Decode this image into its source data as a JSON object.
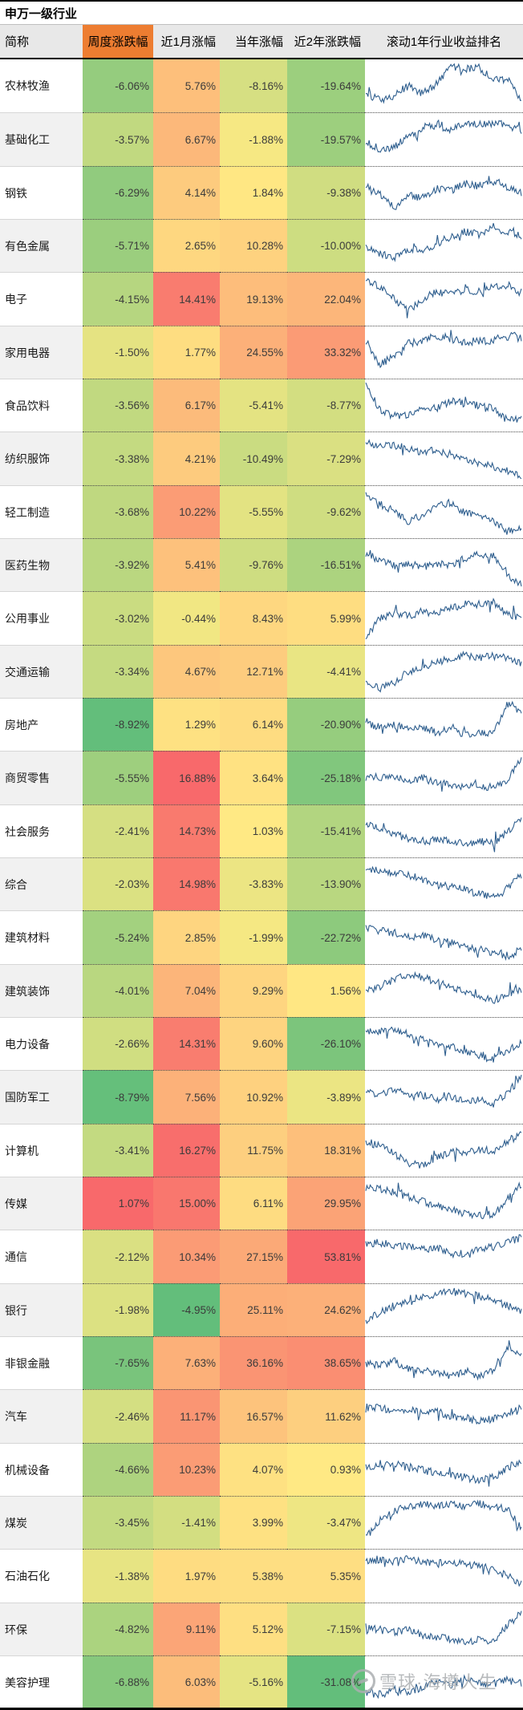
{
  "title": "申万一级行业",
  "header": {
    "name": "简称",
    "weekly": "周度涨跌幅",
    "month1": "近1月涨幅",
    "ytd": "当年涨幅",
    "year2": "近2年涨跌幅",
    "spark": "滚动1年行业收益排名"
  },
  "watermark": {
    "text": "雪球·海樽人生",
    "logo": "xueqiu-circle-logo"
  },
  "colors": {
    "header_accent": "#ED7D31",
    "header_bg": "#E8E8E8",
    "scale_green": "#63BE7B",
    "scale_yellow": "#FFEB84",
    "scale_red": "#F8696B",
    "spark_line": "#2E5E8E",
    "row_alt_bg": "#F1F1F1",
    "top_border": "#000000"
  },
  "scales": {
    "weekly": {
      "min": -8.92,
      "mid": 0,
      "max": 1.07
    },
    "month1": {
      "min": -4.95,
      "mid": 0,
      "max": 16.88
    },
    "ytd": {
      "min": -31.08,
      "mid": 0,
      "max": 53.81
    },
    "year2": {
      "min": -31.08,
      "mid": 0,
      "max": 53.81
    }
  },
  "chart_data": {
    "type": "heatmap",
    "title": "申万一级行业",
    "value_format": "percent_2dp",
    "columns": [
      "简称",
      "周度涨跌幅",
      "近1月涨幅",
      "当年涨幅",
      "近2年涨跌幅",
      "滚动1年行业收益排名"
    ],
    "legend_position": "none",
    "rows": [
      {
        "name": "农林牧渔",
        "weekly": -6.06,
        "month1": 5.76,
        "ytd": -8.16,
        "year2": -19.64,
        "spark": [
          0.35,
          0.2,
          0.3,
          0.5,
          0.35,
          0.55,
          0.9,
          0.85,
          0.9,
          0.6,
          0.65,
          0.2
        ]
      },
      {
        "name": "基础化工",
        "weekly": -3.57,
        "month1": 6.67,
        "ytd": -1.88,
        "year2": -19.57,
        "spark": [
          0.45,
          0.3,
          0.35,
          0.55,
          0.75,
          0.8,
          0.7,
          0.85,
          0.8,
          0.85,
          0.8,
          0.7
        ]
      },
      {
        "name": "钢铁",
        "weekly": -6.29,
        "month1": 4.14,
        "ytd": 1.84,
        "year2": -9.38,
        "spark": [
          0.6,
          0.5,
          0.2,
          0.45,
          0.4,
          0.6,
          0.55,
          0.7,
          0.65,
          0.75,
          0.6,
          0.5
        ]
      },
      {
        "name": "有色金属",
        "weekly": -5.71,
        "month1": 2.65,
        "ytd": 10.28,
        "year2": -10.0,
        "spark": [
          0.5,
          0.35,
          0.25,
          0.45,
          0.4,
          0.55,
          0.7,
          0.8,
          0.75,
          0.85,
          0.8,
          0.7
        ]
      },
      {
        "name": "电子",
        "weekly": -4.15,
        "month1": 14.41,
        "ytd": 19.13,
        "year2": 22.04,
        "spark": [
          0.9,
          0.75,
          0.5,
          0.25,
          0.5,
          0.65,
          0.6,
          0.7,
          0.65,
          0.75,
          0.8,
          0.65
        ]
      },
      {
        "name": "家用电器",
        "weekly": -1.5,
        "month1": 1.77,
        "ytd": 24.55,
        "year2": 33.32,
        "spark": [
          0.75,
          0.25,
          0.45,
          0.7,
          0.75,
          0.85,
          0.8,
          0.7,
          0.75,
          0.75,
          0.9,
          0.8
        ]
      },
      {
        "name": "食品饮料",
        "weekly": -3.56,
        "month1": 6.17,
        "ytd": -5.41,
        "year2": -8.77,
        "spark": [
          0.95,
          0.4,
          0.3,
          0.3,
          0.5,
          0.45,
          0.6,
          0.55,
          0.5,
          0.45,
          0.2,
          0.25
        ]
      },
      {
        "name": "纺织服饰",
        "weekly": -3.38,
        "month1": 4.21,
        "ytd": -10.49,
        "year2": -7.29,
        "spark": [
          0.85,
          0.75,
          0.8,
          0.7,
          0.65,
          0.7,
          0.55,
          0.5,
          0.4,
          0.35,
          0.25,
          0.1
        ]
      },
      {
        "name": "轻工制造",
        "weekly": -3.68,
        "month1": 10.22,
        "ytd": -5.55,
        "year2": -9.62,
        "spark": [
          0.9,
          0.7,
          0.55,
          0.3,
          0.45,
          0.65,
          0.7,
          0.5,
          0.4,
          0.35,
          0.1,
          0.2
        ]
      },
      {
        "name": "医药生物",
        "weekly": -3.92,
        "month1": 5.41,
        "ytd": -9.76,
        "year2": -16.51,
        "spark": [
          0.75,
          0.6,
          0.5,
          0.55,
          0.45,
          0.55,
          0.5,
          0.65,
          0.75,
          0.7,
          0.3,
          0.1
        ]
      },
      {
        "name": "公用事业",
        "weekly": -3.02,
        "month1": -0.44,
        "ytd": 8.43,
        "year2": 5.99,
        "spark": [
          0.1,
          0.5,
          0.6,
          0.55,
          0.65,
          0.6,
          0.7,
          0.8,
          0.8,
          0.85,
          0.6,
          0.5
        ]
      },
      {
        "name": "交通运输",
        "weekly": -3.34,
        "month1": 4.67,
        "ytd": 12.71,
        "year2": -4.41,
        "spark": [
          0.3,
          0.15,
          0.3,
          0.5,
          0.6,
          0.7,
          0.8,
          0.85,
          0.8,
          0.85,
          0.8,
          0.7
        ]
      },
      {
        "name": "房地产",
        "weekly": -8.92,
        "month1": 1.29,
        "ytd": 6.14,
        "year2": -20.9,
        "spark": [
          0.55,
          0.45,
          0.5,
          0.4,
          0.45,
          0.35,
          0.4,
          0.3,
          0.35,
          0.3,
          0.95,
          0.75
        ]
      },
      {
        "name": "商贸零售",
        "weekly": -5.55,
        "month1": 16.88,
        "ytd": 3.64,
        "year2": -25.18,
        "spark": [
          0.6,
          0.5,
          0.55,
          0.45,
          0.5,
          0.4,
          0.35,
          0.3,
          0.35,
          0.3,
          0.45,
          0.9
        ]
      },
      {
        "name": "社会服务",
        "weekly": -2.41,
        "month1": 14.73,
        "ytd": 1.03,
        "year2": -15.41,
        "spark": [
          0.65,
          0.55,
          0.45,
          0.35,
          0.3,
          0.35,
          0.3,
          0.25,
          0.3,
          0.25,
          0.5,
          0.8
        ]
      },
      {
        "name": "综合",
        "weekly": -2.03,
        "month1": 14.98,
        "ytd": -3.83,
        "year2": -13.9,
        "spark": [
          0.85,
          0.8,
          0.75,
          0.7,
          0.6,
          0.5,
          0.45,
          0.4,
          0.3,
          0.25,
          0.45,
          0.7
        ]
      },
      {
        "name": "建筑材料",
        "weekly": -5.24,
        "month1": 2.85,
        "ytd": -1.99,
        "year2": -22.72,
        "spark": [
          0.7,
          0.65,
          0.6,
          0.5,
          0.55,
          0.45,
          0.4,
          0.3,
          0.25,
          0.2,
          0.1,
          0.25
        ]
      },
      {
        "name": "建筑装饰",
        "weekly": -4.01,
        "month1": 7.04,
        "ytd": 9.29,
        "year2": 1.56,
        "spark": [
          0.5,
          0.6,
          0.75,
          0.85,
          0.8,
          0.7,
          0.6,
          0.5,
          0.4,
          0.3,
          0.45,
          0.55
        ]
      },
      {
        "name": "电力设备",
        "weekly": -2.66,
        "month1": 14.31,
        "ytd": 9.6,
        "year2": -26.1,
        "spark": [
          0.8,
          0.75,
          0.8,
          0.7,
          0.6,
          0.5,
          0.45,
          0.35,
          0.25,
          0.2,
          0.35,
          0.55
        ]
      },
      {
        "name": "国防军工",
        "weekly": -8.79,
        "month1": 7.56,
        "ytd": 10.92,
        "year2": -3.89,
        "spark": [
          0.6,
          0.55,
          0.65,
          0.5,
          0.55,
          0.45,
          0.5,
          0.4,
          0.45,
          0.35,
          0.6,
          0.9
        ]
      },
      {
        "name": "计算机",
        "weekly": -3.41,
        "month1": 16.27,
        "ytd": 11.75,
        "year2": 18.31,
        "spark": [
          0.7,
          0.6,
          0.45,
          0.25,
          0.2,
          0.35,
          0.5,
          0.45,
          0.55,
          0.5,
          0.7,
          0.85
        ]
      },
      {
        "name": "传媒",
        "weekly": 1.07,
        "month1": 15.0,
        "ytd": 6.11,
        "year2": 29.95,
        "spark": [
          0.85,
          0.8,
          0.75,
          0.65,
          0.55,
          0.45,
          0.4,
          0.3,
          0.25,
          0.3,
          0.6,
          0.9
        ]
      },
      {
        "name": "通信",
        "weekly": -2.12,
        "month1": 10.34,
        "ytd": 27.15,
        "year2": 53.81,
        "spark": [
          0.75,
          0.8,
          0.7,
          0.75,
          0.65,
          0.7,
          0.6,
          0.55,
          0.65,
          0.7,
          0.8,
          0.9
        ]
      },
      {
        "name": "银行",
        "weekly": -1.98,
        "month1": -4.95,
        "ytd": 25.11,
        "year2": 24.62,
        "spark": [
          0.3,
          0.45,
          0.6,
          0.7,
          0.8,
          0.85,
          0.9,
          0.85,
          0.8,
          0.75,
          0.6,
          0.5
        ]
      },
      {
        "name": "非银金融",
        "weekly": -7.65,
        "month1": 7.63,
        "ytd": 36.16,
        "year2": 38.65,
        "spark": [
          0.5,
          0.45,
          0.55,
          0.4,
          0.35,
          0.3,
          0.25,
          0.3,
          0.25,
          0.35,
          0.85,
          0.7
        ]
      },
      {
        "name": "汽车",
        "weekly": -2.46,
        "month1": 11.17,
        "ytd": 16.57,
        "year2": 11.62,
        "spark": [
          0.65,
          0.7,
          0.6,
          0.65,
          0.55,
          0.6,
          0.5,
          0.45,
          0.4,
          0.45,
          0.55,
          0.7
        ]
      },
      {
        "name": "机械设备",
        "weekly": -4.66,
        "month1": 10.23,
        "ytd": 4.07,
        "year2": 0.93,
        "spark": [
          0.6,
          0.55,
          0.65,
          0.55,
          0.5,
          0.45,
          0.4,
          0.35,
          0.3,
          0.35,
          0.55,
          0.7
        ]
      },
      {
        "name": "煤炭",
        "weekly": -3.45,
        "month1": -1.41,
        "ytd": 3.99,
        "year2": -3.47,
        "spark": [
          0.2,
          0.55,
          0.75,
          0.85,
          0.9,
          0.85,
          0.9,
          0.85,
          0.9,
          0.85,
          0.8,
          0.4
        ]
      },
      {
        "name": "石油石化",
        "weekly": -1.38,
        "month1": 1.97,
        "ytd": 5.38,
        "year2": 5.35,
        "spark": [
          0.8,
          0.85,
          0.8,
          0.85,
          0.8,
          0.75,
          0.8,
          0.75,
          0.7,
          0.65,
          0.5,
          0.35
        ]
      },
      {
        "name": "环保",
        "weekly": -4.82,
        "month1": 9.11,
        "ytd": 5.12,
        "year2": -7.15,
        "spark": [
          0.55,
          0.5,
          0.45,
          0.5,
          0.4,
          0.35,
          0.3,
          0.25,
          0.3,
          0.25,
          0.6,
          0.85
        ]
      },
      {
        "name": "美容护理",
        "weekly": -6.88,
        "month1": 6.03,
        "ytd": -5.16,
        "year2": -31.08,
        "spark": [
          0.3,
          0.25,
          0.35,
          0.3,
          0.4,
          0.55,
          0.45,
          0.6,
          0.5,
          0.45,
          0.55,
          0.5
        ]
      }
    ]
  }
}
